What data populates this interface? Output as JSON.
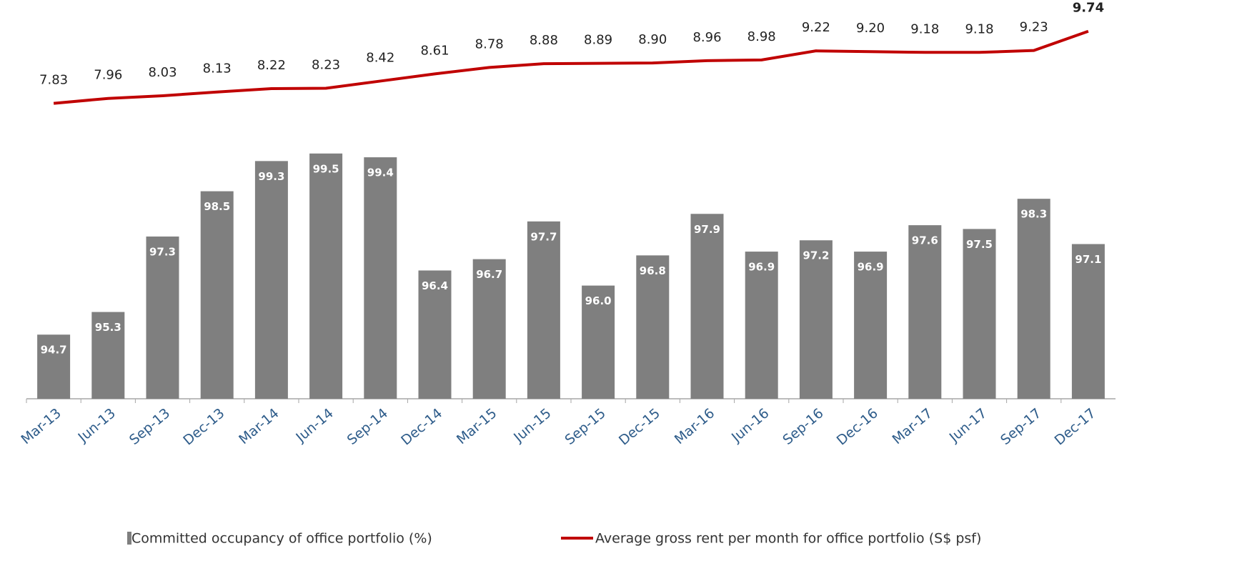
{
  "chart_data": {
    "type": "bar_line",
    "categories": [
      "Mar-13",
      "Jun-13",
      "Sep-13",
      "Dec-13",
      "Mar-14",
      "Jun-14",
      "Sep-14",
      "Dec-14",
      "Mar-15",
      "Jun-15",
      "Sep-15",
      "Dec-15",
      "Mar-16",
      "Jun-16",
      "Sep-16",
      "Dec-16",
      "Mar-17",
      "Jun-17",
      "Sep-17",
      "Dec-17"
    ],
    "series": [
      {
        "name": "Committed occupancy of office portfolio (%)",
        "type": "bar",
        "color": "#7f7f7f",
        "values": [
          94.7,
          95.3,
          97.3,
          98.5,
          99.3,
          99.5,
          99.4,
          96.4,
          96.7,
          97.7,
          96.0,
          96.8,
          97.9,
          96.9,
          97.2,
          96.9,
          97.6,
          97.5,
          98.3,
          97.1
        ],
        "value_labels": [
          "94.7",
          "95.3",
          "97.3",
          "98.5",
          "99.3",
          "99.5",
          "99.4",
          "96.4",
          "96.7",
          "97.7",
          "96.0",
          "96.8",
          "97.9",
          "96.9",
          "97.2",
          "96.9",
          "97.6",
          "97.5",
          "98.3",
          "97.1"
        ]
      },
      {
        "name": "Average gross rent per month for office portfolio (S$ psf)",
        "type": "line",
        "axis": "y2",
        "color": "#c00000",
        "values": [
          7.83,
          7.96,
          8.03,
          8.13,
          8.22,
          8.23,
          8.42,
          8.61,
          8.78,
          8.88,
          8.89,
          8.9,
          8.96,
          8.98,
          9.22,
          9.2,
          9.18,
          9.18,
          9.23,
          9.74
        ],
        "value_labels": [
          "7.83",
          "7.96",
          "8.03",
          "8.13",
          "8.22",
          "8.23",
          "8.42",
          "8.61",
          "8.78",
          "8.88",
          "8.89",
          "8.90",
          "8.96",
          "8.98",
          "9.22",
          "9.20",
          "9.18",
          "9.18",
          "9.23",
          "9.74"
        ]
      }
    ],
    "ylim": [
      93,
      103
    ],
    "y2lim": [
      0,
      10
    ],
    "legend": "bottom"
  }
}
